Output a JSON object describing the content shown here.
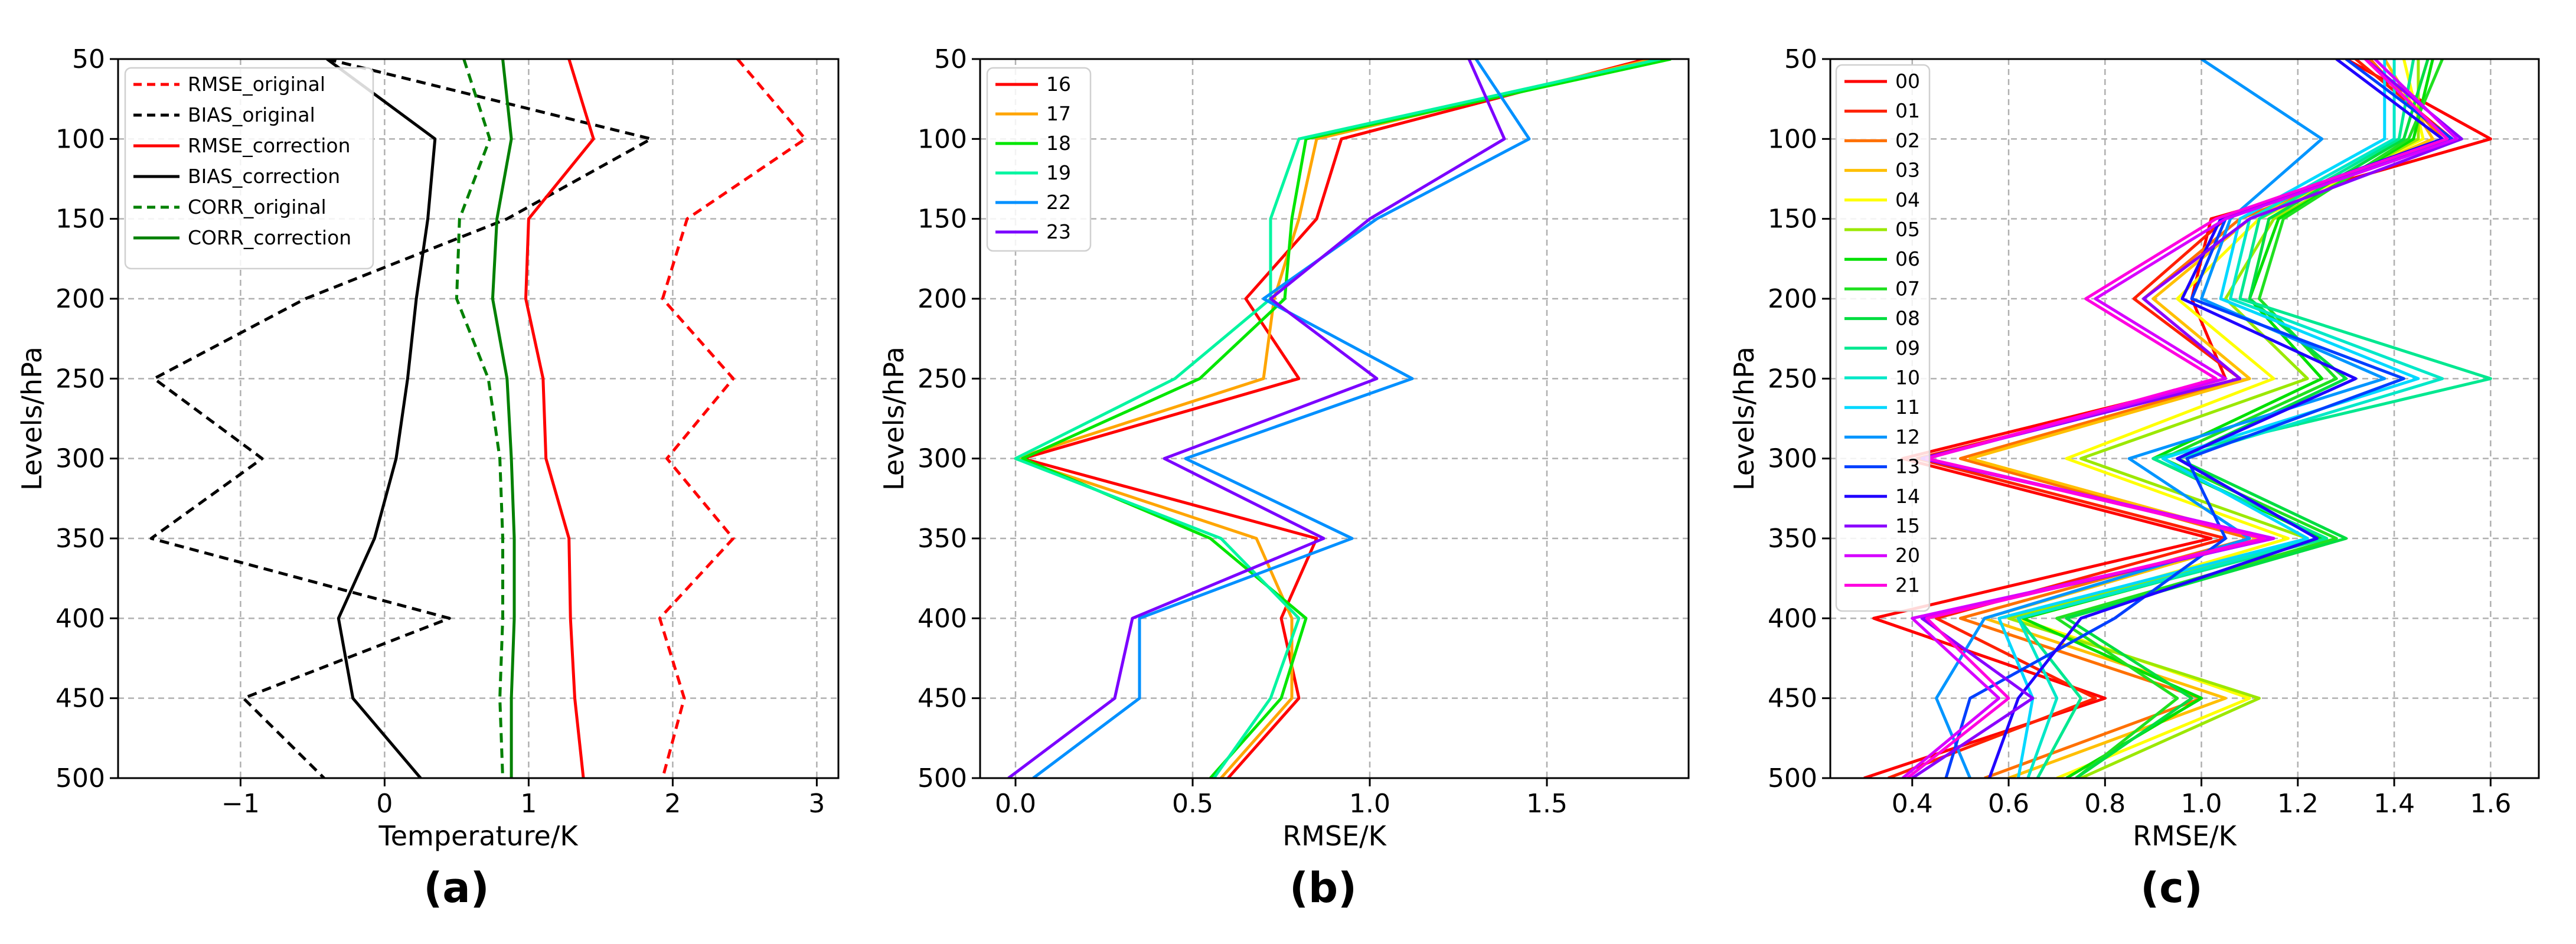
{
  "figure": {
    "panel_letters": [
      "(a)",
      "(b)",
      "(c)"
    ]
  },
  "chart_data": [
    {
      "type": "line",
      "panel": "(a)",
      "xlabel": "Temperature/K",
      "ylabel": "Levels/hPa",
      "xlim": [
        -1.85,
        3.15
      ],
      "ylim": [
        500,
        50
      ],
      "xticks": [
        -1,
        0,
        1,
        2,
        3
      ],
      "xtick_labels": [
        "−1",
        "0",
        "1",
        "2",
        "3"
      ],
      "yticks": [
        50,
        100,
        150,
        200,
        250,
        300,
        350,
        400,
        450,
        500
      ],
      "grid": true,
      "legend_position": "top-left",
      "series": [
        {
          "name": "RMSE_original",
          "color": "#ff0000",
          "dash": "dashed",
          "x": [
            2.45,
            2.92,
            2.1,
            1.93,
            2.42,
            1.96,
            2.42,
            1.91,
            2.08,
            1.93
          ],
          "y": [
            50,
            100,
            150,
            200,
            250,
            300,
            350,
            400,
            450,
            500
          ]
        },
        {
          "name": "BIAS_original",
          "color": "#000000",
          "dash": "dashed",
          "x": [
            -0.4,
            1.85,
            0.85,
            -0.55,
            -1.6,
            -0.85,
            -1.62,
            0.45,
            -0.98,
            -0.42
          ],
          "y": [
            50,
            100,
            150,
            200,
            250,
            300,
            350,
            400,
            450,
            500
          ]
        },
        {
          "name": "RMSE_correction",
          "color": "#ff0000",
          "dash": "solid",
          "x": [
            1.28,
            1.45,
            1.0,
            0.98,
            1.1,
            1.12,
            1.28,
            1.29,
            1.32,
            1.38
          ],
          "y": [
            50,
            100,
            150,
            200,
            250,
            300,
            350,
            400,
            450,
            500
          ]
        },
        {
          "name": "BIAS_correction",
          "color": "#000000",
          "dash": "solid",
          "x": [
            -0.4,
            0.35,
            0.3,
            0.22,
            0.16,
            0.08,
            -0.07,
            -0.32,
            -0.22,
            0.25
          ],
          "y": [
            50,
            100,
            150,
            200,
            250,
            300,
            350,
            400,
            450,
            500
          ]
        },
        {
          "name": "CORR_original",
          "color": "#008000",
          "dash": "dashed",
          "x": [
            0.55,
            0.73,
            0.52,
            0.5,
            0.72,
            0.8,
            0.82,
            0.82,
            0.8,
            0.82
          ],
          "y": [
            50,
            100,
            150,
            200,
            250,
            300,
            350,
            400,
            450,
            500
          ]
        },
        {
          "name": "CORR_correction",
          "color": "#008000",
          "dash": "solid",
          "x": [
            0.82,
            0.88,
            0.78,
            0.75,
            0.85,
            0.88,
            0.9,
            0.9,
            0.88,
            0.88
          ],
          "y": [
            50,
            100,
            150,
            200,
            250,
            300,
            350,
            400,
            450,
            500
          ]
        }
      ]
    },
    {
      "type": "line",
      "panel": "(b)",
      "xlabel": "RMSE/K",
      "ylabel": "Levels/hPa",
      "xlim": [
        -0.1,
        1.9
      ],
      "ylim": [
        500,
        50
      ],
      "xticks": [
        0.0,
        0.5,
        1.0,
        1.5
      ],
      "xtick_labels": [
        "0.0",
        "0.5",
        "1.0",
        "1.5"
      ],
      "yticks": [
        50,
        100,
        150,
        200,
        250,
        300,
        350,
        400,
        450,
        500
      ],
      "grid": true,
      "legend_position": "top-left",
      "series": [
        {
          "name": "16",
          "color": "#ff0000",
          "x": [
            1.78,
            0.92,
            0.85,
            0.65,
            0.8,
            0.02,
            0.85,
            0.75,
            0.8,
            0.6
          ],
          "y": [
            50,
            100,
            150,
            200,
            250,
            300,
            350,
            400,
            450,
            500
          ]
        },
        {
          "name": "17",
          "color": "#ffa500",
          "x": [
            1.8,
            0.85,
            0.8,
            0.73,
            0.7,
            0.0,
            0.68,
            0.78,
            0.78,
            0.58
          ],
          "y": [
            50,
            100,
            150,
            200,
            250,
            300,
            350,
            400,
            450,
            500
          ]
        },
        {
          "name": "18",
          "color": "#00e600",
          "x": [
            1.85,
            0.82,
            0.78,
            0.76,
            0.52,
            0.02,
            0.55,
            0.82,
            0.75,
            0.55
          ],
          "y": [
            50,
            100,
            150,
            200,
            250,
            300,
            350,
            400,
            450,
            500
          ]
        },
        {
          "name": "19",
          "color": "#00f5a0",
          "x": [
            1.82,
            0.8,
            0.72,
            0.72,
            0.45,
            0.0,
            0.58,
            0.8,
            0.72,
            0.56
          ],
          "y": [
            50,
            100,
            150,
            200,
            250,
            300,
            350,
            400,
            450,
            500
          ]
        },
        {
          "name": "22",
          "color": "#0090ff",
          "x": [
            1.3,
            1.45,
            1.02,
            0.7,
            1.12,
            0.48,
            0.95,
            0.35,
            0.35,
            0.05
          ],
          "y": [
            50,
            100,
            150,
            200,
            250,
            300,
            350,
            400,
            450,
            500
          ]
        },
        {
          "name": "23",
          "color": "#7b00ff",
          "x": [
            1.28,
            1.38,
            1.0,
            0.72,
            1.02,
            0.42,
            0.87,
            0.33,
            0.28,
            -0.02
          ],
          "y": [
            50,
            100,
            150,
            200,
            250,
            300,
            350,
            400,
            450,
            500
          ]
        }
      ]
    },
    {
      "type": "line",
      "panel": "(c)",
      "xlabel": "RMSE/K",
      "ylabel": "Levels/hPa",
      "xlim": [
        0.23,
        1.7
      ],
      "ylim": [
        500,
        50
      ],
      "xticks": [
        0.4,
        0.6,
        0.8,
        1.0,
        1.2,
        1.4,
        1.6
      ],
      "xtick_labels": [
        "0.4",
        "0.6",
        "0.8",
        "1.0",
        "1.2",
        "1.4",
        "1.6"
      ],
      "yticks": [
        50,
        100,
        150,
        200,
        250,
        300,
        350,
        400,
        450,
        500
      ],
      "grid": true,
      "legend_position": "top-left",
      "series": [
        {
          "name": "00",
          "color": "#ff0000",
          "x": [
            1.3,
            1.6,
            1.02,
            0.98,
            1.05,
            0.38,
            1.02,
            0.32,
            0.8,
            0.3
          ],
          "y": [
            50,
            100,
            150,
            200,
            250,
            300,
            350,
            400,
            450,
            500
          ]
        },
        {
          "name": "01",
          "color": "#ff2000",
          "x": [
            1.32,
            1.52,
            1.05,
            0.86,
            1.08,
            0.41,
            1.05,
            0.45,
            0.78,
            0.35
          ],
          "y": [
            50,
            100,
            150,
            200,
            250,
            300,
            350,
            400,
            450,
            500
          ]
        },
        {
          "name": "02",
          "color": "#ff7000",
          "x": [
            1.35,
            1.5,
            1.08,
            0.88,
            1.08,
            0.5,
            1.1,
            0.5,
            1.0,
            0.55
          ],
          "y": [
            50,
            100,
            150,
            200,
            250,
            300,
            350,
            400,
            450,
            500
          ]
        },
        {
          "name": "03",
          "color": "#ffbf00",
          "x": [
            1.38,
            1.48,
            1.1,
            0.9,
            1.1,
            0.52,
            1.12,
            0.55,
            1.05,
            0.6
          ],
          "y": [
            50,
            100,
            150,
            200,
            250,
            300,
            350,
            400,
            450,
            500
          ]
        },
        {
          "name": "04",
          "color": "#ffff00",
          "x": [
            1.42,
            1.46,
            1.12,
            0.95,
            1.15,
            0.72,
            1.18,
            0.62,
            1.1,
            0.7
          ],
          "y": [
            50,
            100,
            150,
            200,
            250,
            300,
            350,
            400,
            450,
            500
          ]
        },
        {
          "name": "05",
          "color": "#9be800",
          "x": [
            1.45,
            1.45,
            1.15,
            1.05,
            1.22,
            0.75,
            1.22,
            0.6,
            1.12,
            0.75
          ],
          "y": [
            50,
            100,
            150,
            200,
            250,
            300,
            350,
            400,
            450,
            500
          ]
        },
        {
          "name": "06",
          "color": "#00e000",
          "x": [
            1.48,
            1.44,
            1.16,
            1.1,
            1.25,
            0.9,
            1.25,
            0.63,
            1.0,
            0.72
          ],
          "y": [
            50,
            100,
            150,
            200,
            250,
            300,
            350,
            400,
            450,
            500
          ]
        },
        {
          "name": "07",
          "color": "#20e020",
          "x": [
            1.5,
            1.43,
            1.17,
            1.12,
            1.28,
            0.92,
            1.28,
            0.7,
            0.95,
            0.74
          ],
          "y": [
            50,
            100,
            150,
            200,
            250,
            300,
            350,
            400,
            450,
            500
          ]
        },
        {
          "name": "08",
          "color": "#00dd40",
          "x": [
            1.47,
            1.42,
            1.14,
            1.1,
            1.3,
            0.95,
            1.3,
            0.72,
            0.98,
            0.74
          ],
          "y": [
            50,
            100,
            150,
            200,
            250,
            300,
            350,
            400,
            450,
            500
          ]
        },
        {
          "name": "09",
          "color": "#00e890",
          "x": [
            1.44,
            1.41,
            1.12,
            1.08,
            1.6,
            0.9,
            1.26,
            0.62,
            0.75,
            0.66
          ],
          "y": [
            50,
            100,
            150,
            200,
            250,
            300,
            350,
            400,
            450,
            500
          ]
        },
        {
          "name": "10",
          "color": "#00e8c8",
          "x": [
            1.4,
            1.4,
            1.1,
            1.06,
            1.5,
            0.95,
            1.24,
            0.62,
            0.7,
            0.64
          ],
          "y": [
            50,
            100,
            150,
            200,
            250,
            300,
            350,
            400,
            450,
            500
          ]
        },
        {
          "name": "11",
          "color": "#00d8ff",
          "x": [
            1.38,
            1.38,
            1.08,
            1.04,
            1.45,
            0.92,
            1.22,
            0.58,
            0.65,
            0.62
          ],
          "y": [
            50,
            100,
            150,
            200,
            250,
            300,
            350,
            400,
            450,
            500
          ]
        },
        {
          "name": "12",
          "color": "#0095ff",
          "x": [
            1.0,
            1.25,
            1.06,
            1.0,
            1.38,
            0.85,
            1.1,
            0.55,
            0.45,
            0.52
          ],
          "y": [
            50,
            100,
            150,
            200,
            250,
            300,
            350,
            400,
            450,
            500
          ]
        },
        {
          "name": "13",
          "color": "#0040ff",
          "x": [
            1.3,
            1.52,
            1.05,
            0.98,
            1.42,
            0.97,
            1.05,
            0.82,
            0.52,
            0.47
          ],
          "y": [
            50,
            100,
            150,
            200,
            250,
            300,
            350,
            400,
            450,
            500
          ]
        },
        {
          "name": "14",
          "color": "#2000ff",
          "x": [
            1.28,
            1.5,
            1.04,
            0.96,
            1.32,
            0.95,
            1.24,
            0.75,
            0.62,
            0.56
          ],
          "y": [
            50,
            100,
            150,
            200,
            250,
            300,
            350,
            400,
            450,
            500
          ]
        },
        {
          "name": "15",
          "color": "#8a00ff",
          "x": [
            1.34,
            1.54,
            1.1,
            0.88,
            1.08,
            0.42,
            1.15,
            0.42,
            0.65,
            0.4
          ],
          "y": [
            50,
            100,
            150,
            200,
            250,
            300,
            350,
            400,
            450,
            500
          ]
        },
        {
          "name": "20",
          "color": "#d600ff",
          "x": [
            1.36,
            1.53,
            1.05,
            0.78,
            1.05,
            0.43,
            1.15,
            0.4,
            0.58,
            0.38
          ],
          "y": [
            50,
            100,
            150,
            200,
            250,
            300,
            350,
            400,
            450,
            500
          ]
        },
        {
          "name": "21",
          "color": "#ff00e0",
          "x": [
            1.34,
            1.51,
            1.03,
            0.76,
            1.03,
            0.43,
            1.13,
            0.43,
            0.6,
            0.39
          ],
          "y": [
            50,
            100,
            150,
            200,
            250,
            300,
            350,
            400,
            450,
            500
          ]
        }
      ]
    }
  ]
}
